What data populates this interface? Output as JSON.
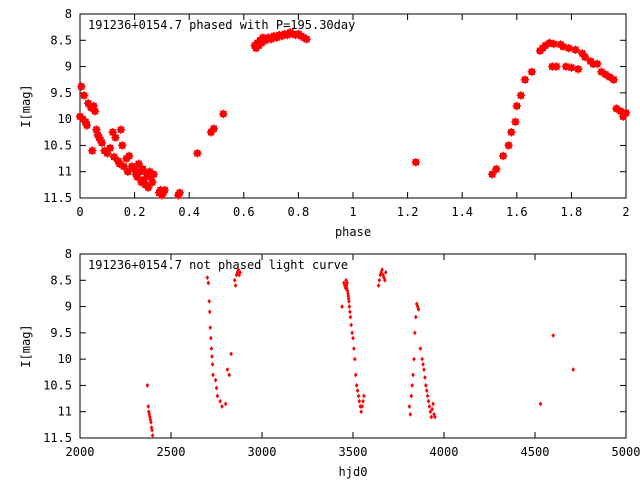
{
  "chart_data": [
    {
      "type": "scatter",
      "title": "191236+0154.7 phased with P=195.30day",
      "xlabel": "phase",
      "ylabel": "I[mag]",
      "xlim": [
        0,
        2
      ],
      "ylim": [
        8,
        11.5
      ],
      "y_inverted": true,
      "grid": false,
      "x_ticks": [
        "0",
        "0.2",
        "0.4",
        "0.6",
        "0.8",
        "1",
        "1.2",
        "1.4",
        "1.6",
        "1.8",
        "2"
      ],
      "x_tick_values": [
        0,
        0.2,
        0.4,
        0.6,
        0.8,
        1.0,
        1.2,
        1.4,
        1.6,
        1.8,
        2.0
      ],
      "y_ticks": [
        "8",
        "8.5",
        "9",
        "9.5",
        "10",
        "10.5",
        "11",
        "11.5"
      ],
      "y_tick_values": [
        8,
        8.5,
        9,
        9.5,
        10,
        10.5,
        11,
        11.5
      ],
      "marker_color": "#ff0000",
      "x": [
        0.0,
        0.005,
        0.01,
        0.015,
        0.02,
        0.025,
        0.03,
        0.04,
        0.045,
        0.05,
        0.055,
        0.06,
        0.065,
        0.07,
        0.075,
        0.08,
        0.09,
        0.1,
        0.11,
        0.12,
        0.125,
        0.13,
        0.14,
        0.145,
        0.15,
        0.155,
        0.16,
        0.17,
        0.175,
        0.18,
        0.19,
        0.2,
        0.205,
        0.21,
        0.215,
        0.22,
        0.225,
        0.23,
        0.235,
        0.24,
        0.245,
        0.25,
        0.255,
        0.26,
        0.265,
        0.27,
        0.29,
        0.295,
        0.3,
        0.305,
        0.31,
        0.36,
        0.365,
        0.43,
        0.48,
        0.49,
        0.525,
        0.64,
        0.645,
        0.65,
        0.655,
        0.66,
        0.665,
        0.67,
        0.68,
        0.69,
        0.7,
        0.71,
        0.72,
        0.73,
        0.74,
        0.75,
        0.76,
        0.77,
        0.78,
        0.79,
        0.8,
        0.81,
        0.82,
        0.83,
        1.23,
        1.51,
        1.525,
        1.55,
        1.57,
        1.58,
        1.595,
        1.6,
        1.615,
        1.63,
        1.655,
        1.685,
        1.695,
        1.705,
        1.72,
        1.73,
        1.735,
        1.745,
        1.76,
        1.77,
        1.78,
        1.79,
        1.8,
        1.815,
        1.825,
        1.84,
        1.85,
        1.87,
        1.88,
        1.895,
        1.91,
        1.925,
        1.94,
        1.955,
        1.965,
        1.98,
        1.99,
        2.0
      ],
      "y": [
        9.95,
        9.38,
        10.0,
        9.55,
        10.05,
        10.12,
        9.7,
        9.78,
        10.6,
        9.75,
        9.85,
        10.2,
        10.3,
        10.35,
        10.4,
        10.45,
        10.6,
        10.65,
        10.55,
        10.25,
        10.72,
        10.35,
        10.8,
        10.85,
        10.2,
        10.5,
        10.9,
        10.75,
        11.0,
        10.7,
        10.9,
        10.95,
        11.05,
        11.1,
        10.85,
        11.0,
        11.2,
        10.95,
        11.15,
        11.25,
        11.05,
        11.3,
        11.0,
        11.1,
        11.2,
        11.05,
        11.4,
        11.35,
        11.45,
        11.4,
        11.35,
        11.45,
        11.4,
        10.65,
        10.25,
        10.18,
        9.9,
        8.6,
        8.65,
        8.55,
        8.6,
        8.5,
        8.55,
        8.45,
        8.5,
        8.45,
        8.48,
        8.42,
        8.45,
        8.4,
        8.42,
        8.38,
        8.4,
        8.35,
        8.38,
        8.4,
        8.38,
        8.42,
        8.45,
        8.48,
        10.82,
        11.05,
        10.95,
        10.7,
        10.5,
        10.25,
        10.05,
        9.75,
        9.55,
        9.25,
        9.1,
        8.7,
        8.65,
        8.6,
        8.55,
        9.0,
        8.57,
        9.0,
        8.58,
        8.62,
        9.0,
        8.65,
        9.02,
        8.68,
        9.05,
        8.75,
        8.82,
        8.9,
        8.95,
        8.95,
        9.1,
        9.15,
        9.2,
        9.25,
        9.8,
        9.85,
        9.95,
        9.88
      ],
      "bottom_axis": {
        "ticks": [
          "0",
          "0.2",
          "0.4",
          "0.6",
          "0.8",
          "1",
          "1.2",
          "1.4",
          "1.6",
          "1.8",
          "2"
        ]
      }
    },
    {
      "type": "scatter",
      "title": "191236+0154.7 not phased light curve",
      "xlabel": "hjd0",
      "ylabel": "I[mag]",
      "xlim": [
        2000,
        5000
      ],
      "ylim": [
        8,
        11.5
      ],
      "y_inverted": true,
      "grid": false,
      "x_ticks": [
        "2000",
        "2500",
        "3000",
        "3500",
        "4000",
        "4500",
        "5000"
      ],
      "x_tick_values": [
        2000,
        2500,
        3000,
        3500,
        4000,
        4500,
        5000
      ],
      "y_ticks": [
        "8",
        "8.5",
        "9",
        "9.5",
        "10",
        "10.5",
        "11",
        "11.5"
      ],
      "y_tick_values": [
        8,
        8.5,
        9,
        9.5,
        10,
        10.5,
        11,
        11.5
      ],
      "marker_color": "#ff0000",
      "x": [
        2370,
        2375,
        2378,
        2381,
        2384,
        2387,
        2390,
        2393,
        2396,
        2399,
        2700,
        2705,
        2710,
        2713,
        2716,
        2719,
        2722,
        2725,
        2728,
        2731,
        2745,
        2750,
        2755,
        2770,
        2780,
        2800,
        2810,
        2820,
        2830,
        2850,
        2855,
        2860,
        2865,
        2870,
        2875,
        2880,
        3440,
        3450,
        3455,
        3460,
        3462,
        3464,
        3466,
        3468,
        3470,
        3472,
        3474,
        3476,
        3478,
        3480,
        3483,
        3486,
        3490,
        3495,
        3500,
        3505,
        3510,
        3515,
        3520,
        3525,
        3530,
        3535,
        3540,
        3545,
        3550,
        3555,
        3560,
        3640,
        3645,
        3650,
        3655,
        3660,
        3665,
        3670,
        3675,
        3680,
        3810,
        3815,
        3820,
        3825,
        3830,
        3835,
        3840,
        3845,
        3850,
        3855,
        3860,
        3870,
        3880,
        3885,
        3890,
        3895,
        3900,
        3905,
        3910,
        3915,
        3920,
        3925,
        3930,
        3935,
        3940,
        3945,
        3950,
        4530,
        4600,
        4710
      ],
      "y": [
        10.5,
        10.9,
        11.0,
        11.05,
        11.1,
        11.15,
        11.2,
        11.3,
        11.35,
        11.45,
        8.45,
        8.55,
        8.9,
        9.1,
        9.4,
        9.6,
        9.8,
        9.95,
        10.1,
        10.3,
        10.4,
        10.55,
        10.7,
        10.8,
        10.9,
        10.85,
        10.2,
        10.3,
        9.9,
        8.5,
        8.6,
        8.4,
        8.35,
        8.3,
        8.4,
        8.35,
        9.0,
        8.55,
        8.6,
        8.65,
        8.5,
        8.6,
        8.65,
        8.55,
        8.7,
        8.75,
        8.8,
        8.85,
        8.9,
        9.0,
        9.1,
        9.2,
        9.35,
        9.5,
        9.6,
        9.8,
        10.0,
        10.3,
        10.5,
        10.6,
        10.7,
        10.8,
        10.9,
        11.0,
        10.9,
        10.8,
        10.7,
        8.6,
        8.5,
        8.4,
        8.35,
        8.3,
        8.4,
        8.45,
        8.5,
        8.35,
        10.9,
        11.05,
        10.7,
        10.5,
        10.3,
        10.0,
        9.5,
        9.2,
        8.95,
        9.0,
        9.05,
        9.8,
        10.0,
        10.1,
        10.2,
        10.35,
        10.5,
        10.6,
        10.7,
        10.8,
        10.9,
        11.0,
        11.1,
        10.95,
        10.85,
        11.05,
        11.1,
        10.85,
        9.55,
        10.2
      ]
    }
  ]
}
